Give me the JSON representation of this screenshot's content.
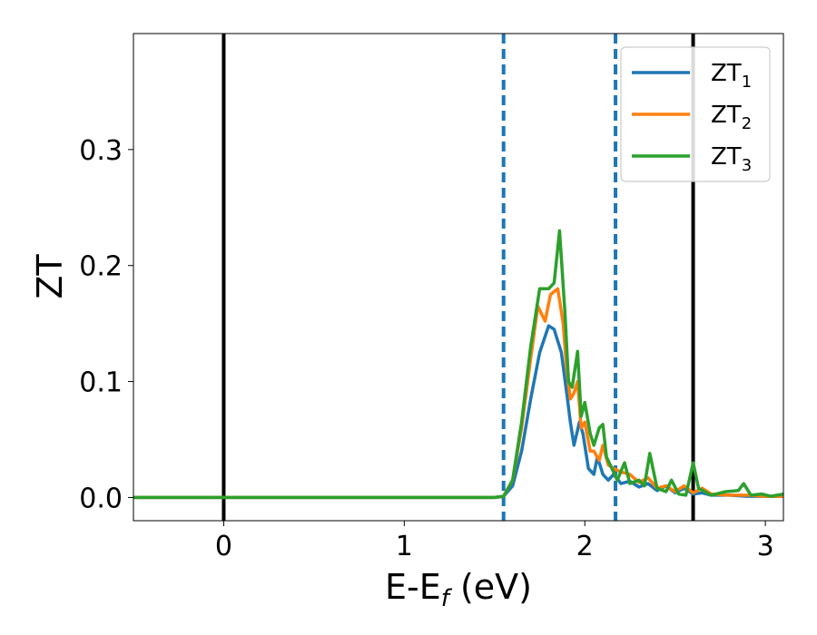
{
  "chart_data": {
    "type": "line",
    "xlabel": {
      "main": "E-E",
      "sub": "f",
      "unit": " (eV)"
    },
    "ylabel": "ZT",
    "xlim": [
      -0.5,
      3.1
    ],
    "ylim": [
      -0.02,
      0.4
    ],
    "xticks": [
      0,
      1,
      2,
      3
    ],
    "xtick_labels": [
      "0",
      "1",
      "2",
      "3"
    ],
    "yticks": [
      0.0,
      0.1,
      0.2,
      0.3
    ],
    "ytick_labels": [
      "0.0",
      "0.1",
      "0.2",
      "0.3"
    ],
    "grid": false,
    "legend_position": "top-right",
    "vertical_lines": [
      {
        "x": 0.0,
        "style": "solid",
        "color": "#000000"
      },
      {
        "x": 1.55,
        "style": "dashed",
        "color": "#1f77b4"
      },
      {
        "x": 2.17,
        "style": "dashed",
        "color": "#1f77b4"
      },
      {
        "x": 2.6,
        "style": "solid",
        "color": "#000000"
      }
    ],
    "series": [
      {
        "name": "ZT",
        "subscript": "1",
        "color": "#1f77b4",
        "points": [
          [
            -0.5,
            0
          ],
          [
            1.5,
            0
          ],
          [
            1.55,
            0.001
          ],
          [
            1.6,
            0.01
          ],
          [
            1.65,
            0.04
          ],
          [
            1.7,
            0.085
          ],
          [
            1.75,
            0.125
          ],
          [
            1.8,
            0.148
          ],
          [
            1.83,
            0.145
          ],
          [
            1.87,
            0.125
          ],
          [
            1.9,
            0.09
          ],
          [
            1.92,
            0.065
          ],
          [
            1.94,
            0.045
          ],
          [
            1.97,
            0.065
          ],
          [
            1.99,
            0.055
          ],
          [
            2.02,
            0.025
          ],
          [
            2.05,
            0.02
          ],
          [
            2.07,
            0.035
          ],
          [
            2.1,
            0.02
          ],
          [
            2.13,
            0.015
          ],
          [
            2.16,
            0.02
          ],
          [
            2.2,
            0.012
          ],
          [
            2.25,
            0.014
          ],
          [
            2.3,
            0.009
          ],
          [
            2.35,
            0.012
          ],
          [
            2.4,
            0.006
          ],
          [
            2.45,
            0.01
          ],
          [
            2.5,
            0.004
          ],
          [
            2.55,
            0.008
          ],
          [
            2.6,
            0.003
          ],
          [
            2.65,
            0.004
          ],
          [
            2.7,
            0.002
          ],
          [
            2.8,
            0.002
          ],
          [
            2.9,
            0.001
          ],
          [
            3.0,
            0.001
          ],
          [
            3.1,
            0.001
          ]
        ]
      },
      {
        "name": "ZT",
        "subscript": "2",
        "color": "#ff7f0e",
        "points": [
          [
            -0.5,
            0
          ],
          [
            1.5,
            0
          ],
          [
            1.55,
            0.001
          ],
          [
            1.6,
            0.015
          ],
          [
            1.65,
            0.06
          ],
          [
            1.7,
            0.12
          ],
          [
            1.74,
            0.165
          ],
          [
            1.78,
            0.152
          ],
          [
            1.81,
            0.175
          ],
          [
            1.85,
            0.18
          ],
          [
            1.88,
            0.15
          ],
          [
            1.9,
            0.11
          ],
          [
            1.92,
            0.085
          ],
          [
            1.94,
            0.09
          ],
          [
            1.96,
            0.1
          ],
          [
            1.98,
            0.06
          ],
          [
            2.0,
            0.065
          ],
          [
            2.03,
            0.04
          ],
          [
            2.05,
            0.04
          ],
          [
            2.08,
            0.032
          ],
          [
            2.1,
            0.045
          ],
          [
            2.13,
            0.028
          ],
          [
            2.16,
            0.025
          ],
          [
            2.2,
            0.022
          ],
          [
            2.25,
            0.02
          ],
          [
            2.3,
            0.013
          ],
          [
            2.35,
            0.017
          ],
          [
            2.4,
            0.008
          ],
          [
            2.45,
            0.01
          ],
          [
            2.5,
            0.005
          ],
          [
            2.55,
            0.01
          ],
          [
            2.6,
            0.004
          ],
          [
            2.65,
            0.008
          ],
          [
            2.7,
            0.003
          ],
          [
            2.8,
            0.002
          ],
          [
            2.9,
            0.002
          ],
          [
            3.0,
            0.001
          ],
          [
            3.1,
            0.001
          ]
        ]
      },
      {
        "name": "ZT",
        "subscript": "3",
        "color": "#2ca02c",
        "points": [
          [
            -0.5,
            0
          ],
          [
            1.5,
            0
          ],
          [
            1.55,
            0.001
          ],
          [
            1.6,
            0.015
          ],
          [
            1.65,
            0.065
          ],
          [
            1.7,
            0.13
          ],
          [
            1.75,
            0.18
          ],
          [
            1.8,
            0.18
          ],
          [
            1.83,
            0.185
          ],
          [
            1.86,
            0.23
          ],
          [
            1.89,
            0.16
          ],
          [
            1.91,
            0.1
          ],
          [
            1.93,
            0.095
          ],
          [
            1.96,
            0.126
          ],
          [
            1.98,
            0.07
          ],
          [
            2.0,
            0.082
          ],
          [
            2.03,
            0.055
          ],
          [
            2.05,
            0.045
          ],
          [
            2.08,
            0.06
          ],
          [
            2.1,
            0.063
          ],
          [
            2.12,
            0.035
          ],
          [
            2.15,
            0.025
          ],
          [
            2.18,
            0.015
          ],
          [
            2.22,
            0.03
          ],
          [
            2.25,
            0.012
          ],
          [
            2.3,
            0.015
          ],
          [
            2.33,
            0.01
          ],
          [
            2.36,
            0.038
          ],
          [
            2.4,
            0.008
          ],
          [
            2.45,
            0.005
          ],
          [
            2.48,
            0.015
          ],
          [
            2.52,
            0.003
          ],
          [
            2.56,
            0.002
          ],
          [
            2.6,
            0.03
          ],
          [
            2.63,
            0.008
          ],
          [
            2.7,
            0.002
          ],
          [
            2.78,
            0.005
          ],
          [
            2.85,
            0.006
          ],
          [
            2.88,
            0.012
          ],
          [
            2.92,
            0.002
          ],
          [
            2.98,
            0.003
          ],
          [
            3.03,
            0.001
          ],
          [
            3.1,
            0.003
          ]
        ]
      }
    ]
  }
}
